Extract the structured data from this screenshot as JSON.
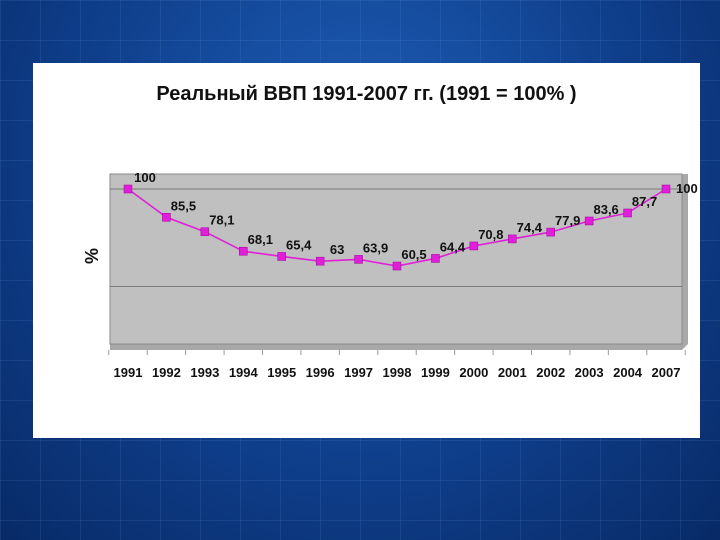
{
  "slide": {
    "title": "Реальный ВВП 1991-2007 гг. (1991 = 100% )"
  },
  "colors": {
    "line": "#e020d8",
    "plot_bg": "#c0c0c0",
    "background": "#0f3f8c"
  },
  "chart_data": {
    "type": "line",
    "title": "Реальный ВВП 1991-2007 гг. (1991 = 100% )",
    "ylabel": "%",
    "xlabel": "",
    "categories": [
      "1991",
      "1992",
      "1993",
      "1994",
      "1995",
      "1996",
      "1997",
      "1998",
      "1999",
      "2000",
      "2001",
      "2002",
      "2003",
      "2004",
      "2007"
    ],
    "series": [
      {
        "values": [
          100,
          85.5,
          78.1,
          68.1,
          65.4,
          63,
          63.9,
          60.5,
          64.4,
          70.8,
          74.4,
          77.9,
          83.6,
          87.7,
          100
        ],
        "labels": [
          "100",
          "85,5",
          "78,1",
          "68,1",
          "65,4",
          "63",
          "63,9",
          "60,5",
          "64,4",
          "70,8",
          "74,4",
          "77,9",
          "83,6",
          "87,7",
          "100"
        ]
      }
    ],
    "ylim": [
      0,
      100
    ],
    "grid": true,
    "legend": "none",
    "marker": "square"
  }
}
